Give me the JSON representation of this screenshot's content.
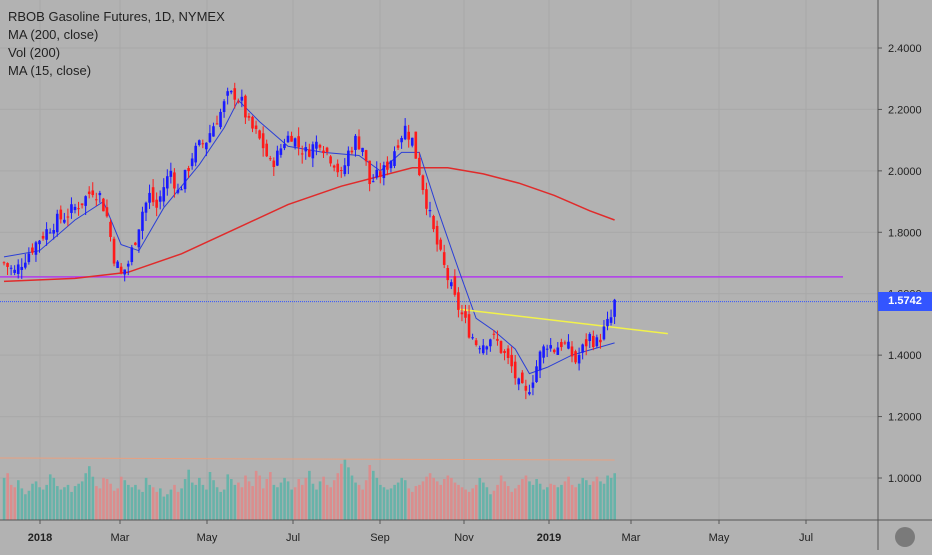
{
  "legend": {
    "title": "RBOB Gasoline Futures, 1D, NYMEX",
    "ma200": "MA (200, close)",
    "vol": "Vol (200)",
    "ma15": "MA (15, close)"
  },
  "colors": {
    "background": "#b2b2b2",
    "up_candle": "#1a1aff",
    "down_candle": "#ff1a1a",
    "ma15": "#2b3fd6",
    "ma200": "#e02b2b",
    "support_line": "#b23aee",
    "trend_line": "#f2f24a",
    "price_line": "#3355ff",
    "vol_up": "#4db3a6",
    "vol_down": "#e88080",
    "vol_ma": "#e8a080",
    "price_tag": "#3355ff"
  },
  "chart_data": {
    "type": "candlestick",
    "title": "RBOB Gasoline Futures, 1D, NYMEX",
    "x_tick_labels": [
      "2018",
      "Mar",
      "May",
      "Jul",
      "Sep",
      "Nov",
      "2019",
      "Mar",
      "May",
      "Jul"
    ],
    "y_tick_labels": [
      "1.0000",
      "1.2000",
      "1.4000",
      "1.6000",
      "1.8000",
      "2.0000",
      "2.2000",
      "2.4000"
    ],
    "y_ticks": [
      1.0,
      1.2,
      1.4,
      1.6,
      1.8,
      2.0,
      2.2,
      2.4
    ],
    "ylim": [
      0.85,
      2.55
    ],
    "last_price_label": "1.5742",
    "last_price": 1.5742,
    "horizontal_line": 1.655,
    "price_path": [
      [
        0,
        1.7
      ],
      [
        3,
        1.67
      ],
      [
        6,
        1.72
      ],
      [
        10,
        1.78
      ],
      [
        14,
        1.83
      ],
      [
        18,
        1.86
      ],
      [
        22,
        1.9
      ],
      [
        25,
        1.94
      ],
      [
        27,
        1.92
      ],
      [
        29,
        1.85
      ],
      [
        31,
        1.72
      ],
      [
        33,
        1.66
      ],
      [
        35,
        1.7
      ],
      [
        37,
        1.78
      ],
      [
        39,
        1.87
      ],
      [
        41,
        1.92
      ],
      [
        43,
        1.88
      ],
      [
        45,
        1.95
      ],
      [
        47,
        2.0
      ],
      [
        49,
        1.93
      ],
      [
        51,
        1.98
      ],
      [
        53,
        2.05
      ],
      [
        55,
        2.08
      ],
      [
        57,
        2.1
      ],
      [
        59,
        2.15
      ],
      [
        61,
        2.19
      ],
      [
        63,
        2.24
      ],
      [
        65,
        2.25
      ],
      [
        67,
        2.22
      ],
      [
        69,
        2.15
      ],
      [
        71,
        2.12
      ],
      [
        73,
        2.08
      ],
      [
        75,
        2.02
      ],
      [
        77,
        2.05
      ],
      [
        79,
        2.1
      ],
      [
        81,
        2.12
      ],
      [
        83,
        2.08
      ],
      [
        85,
        2.06
      ],
      [
        87,
        2.08
      ],
      [
        89,
        2.1
      ],
      [
        91,
        2.06
      ],
      [
        93,
        2.03
      ],
      [
        95,
        1.98
      ],
      [
        97,
        2.06
      ],
      [
        99,
        2.1
      ],
      [
        101,
        2.08
      ],
      [
        103,
        1.96
      ],
      [
        105,
        1.98
      ],
      [
        107,
        2.0
      ],
      [
        109,
        2.04
      ],
      [
        111,
        2.1
      ],
      [
        113,
        2.14
      ],
      [
        115,
        2.1
      ],
      [
        117,
        2.0
      ],
      [
        119,
        1.9
      ],
      [
        121,
        1.8
      ],
      [
        123,
        1.72
      ],
      [
        125,
        1.65
      ],
      [
        127,
        1.58
      ],
      [
        129,
        1.53
      ],
      [
        131,
        1.48
      ],
      [
        133,
        1.44
      ],
      [
        135,
        1.44
      ],
      [
        137,
        1.46
      ],
      [
        139,
        1.44
      ],
      [
        141,
        1.4
      ],
      [
        143,
        1.36
      ],
      [
        145,
        1.3
      ],
      [
        147,
        1.27
      ],
      [
        149,
        1.33
      ],
      [
        151,
        1.4
      ],
      [
        153,
        1.44
      ],
      [
        155,
        1.42
      ],
      [
        157,
        1.44
      ],
      [
        159,
        1.42
      ],
      [
        161,
        1.38
      ],
      [
        163,
        1.42
      ],
      [
        165,
        1.46
      ],
      [
        167,
        1.44
      ],
      [
        169,
        1.48
      ],
      [
        171,
        1.52
      ],
      [
        172,
        1.57
      ]
    ],
    "ma200_path": [
      [
        0,
        1.64
      ],
      [
        20,
        1.65
      ],
      [
        35,
        1.67
      ],
      [
        50,
        1.73
      ],
      [
        65,
        1.81
      ],
      [
        80,
        1.89
      ],
      [
        95,
        1.95
      ],
      [
        105,
        1.98
      ],
      [
        115,
        2.01
      ],
      [
        125,
        2.01
      ],
      [
        135,
        1.99
      ],
      [
        145,
        1.96
      ],
      [
        155,
        1.92
      ],
      [
        165,
        1.87
      ],
      [
        172,
        1.84
      ]
    ],
    "ma15_path": [
      [
        0,
        1.72
      ],
      [
        10,
        1.74
      ],
      [
        20,
        1.84
      ],
      [
        28,
        1.9
      ],
      [
        33,
        1.76
      ],
      [
        38,
        1.74
      ],
      [
        45,
        1.88
      ],
      [
        55,
        2.02
      ],
      [
        62,
        2.14
      ],
      [
        66,
        2.23
      ],
      [
        72,
        2.16
      ],
      [
        80,
        2.08
      ],
      [
        90,
        2.06
      ],
      [
        100,
        2.05
      ],
      [
        106,
        2.0
      ],
      [
        112,
        2.06
      ],
      [
        117,
        2.06
      ],
      [
        122,
        1.88
      ],
      [
        128,
        1.68
      ],
      [
        133,
        1.52
      ],
      [
        138,
        1.48
      ],
      [
        144,
        1.42
      ],
      [
        148,
        1.34
      ],
      [
        153,
        1.36
      ],
      [
        160,
        1.4
      ],
      [
        166,
        1.42
      ],
      [
        172,
        1.44
      ]
    ],
    "trend_line": {
      "start": [
        128,
        1.55
      ],
      "end": [
        187,
        1.47
      ]
    },
    "volume_heights": [
      0.36,
      0.4,
      0.3,
      0.28,
      0.34,
      0.27,
      0.22,
      0.25,
      0.31,
      0.33,
      0.28,
      0.26,
      0.3,
      0.39,
      0.36,
      0.29,
      0.26,
      0.28,
      0.3,
      0.24,
      0.29,
      0.31,
      0.33,
      0.4,
      0.46,
      0.37,
      0.29,
      0.27,
      0.36,
      0.35,
      0.31,
      0.25,
      0.27,
      0.37,
      0.34,
      0.3,
      0.28,
      0.3,
      0.26,
      0.24,
      0.36,
      0.3,
      0.28,
      0.24,
      0.27,
      0.2,
      0.22,
      0.26,
      0.3,
      0.24,
      0.27,
      0.35,
      0.43,
      0.32,
      0.3,
      0.36,
      0.3,
      0.26,
      0.41,
      0.34,
      0.28,
      0.24,
      0.26,
      0.39,
      0.35,
      0.3,
      0.32,
      0.28,
      0.38,
      0.33,
      0.29,
      0.42,
      0.38,
      0.27,
      0.35,
      0.41,
      0.3,
      0.28,
      0.32,
      0.36,
      0.33,
      0.26,
      0.28,
      0.35,
      0.3,
      0.36,
      0.42,
      0.31,
      0.26,
      0.33,
      0.37,
      0.3,
      0.28,
      0.34,
      0.4,
      0.48,
      0.52,
      0.45,
      0.38,
      0.32,
      0.3,
      0.26,
      0.34,
      0.47,
      0.42,
      0.36,
      0.3,
      0.28,
      0.26,
      0.27,
      0.3,
      0.32,
      0.36,
      0.34,
      0.27,
      0.24,
      0.29,
      0.3,
      0.33,
      0.37,
      0.4,
      0.36,
      0.33,
      0.3,
      0.35,
      0.38,
      0.36,
      0.32,
      0.3,
      0.28,
      0.26,
      0.24,
      0.27,
      0.3,
      0.36,
      0.32,
      0.28,
      0.22,
      0.25,
      0.3,
      0.38,
      0.33,
      0.29,
      0.24,
      0.27,
      0.3,
      0.35,
      0.38,
      0.33,
      0.3,
      0.35,
      0.31,
      0.26,
      0.28,
      0.31,
      0.3,
      0.28,
      0.3,
      0.33,
      0.37,
      0.3,
      0.28,
      0.31,
      0.36,
      0.34,
      0.3,
      0.33,
      0.37,
      0.33,
      0.31,
      0.38,
      0.36,
      0.4
    ],
    "grid": true,
    "legend_position": "top-left"
  }
}
